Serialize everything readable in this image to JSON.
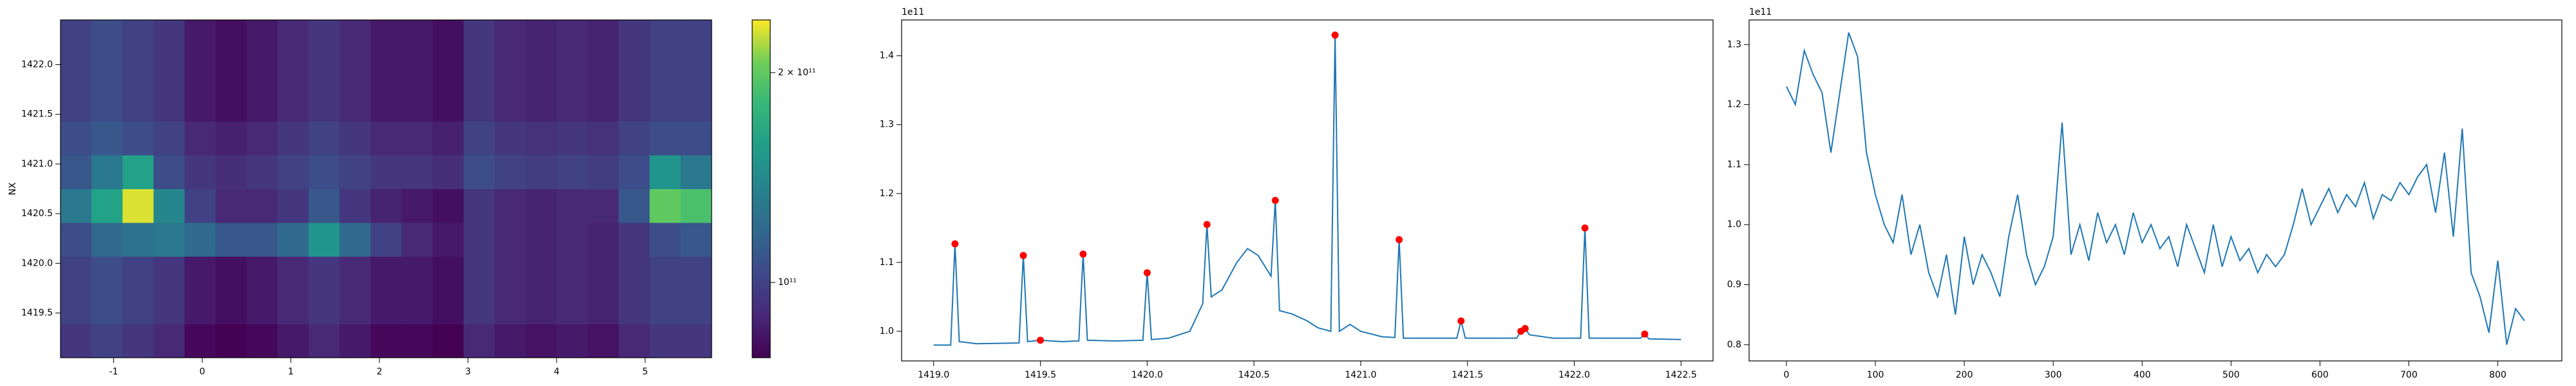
{
  "chart_data": [
    {
      "type": "heatmap",
      "ylabel": "NX",
      "colormap": "viridis",
      "xbins": [
        -1.6,
        -1.25,
        -0.9,
        -0.55,
        -0.2,
        0.15,
        0.5,
        0.85,
        1.2,
        1.55,
        1.9,
        2.25,
        2.6,
        2.95,
        3.3,
        3.65,
        4.0,
        4.35,
        4.7,
        5.05,
        5.4,
        5.75
      ],
      "ybins": [
        1419.05,
        1419.39,
        1419.73,
        1420.07,
        1420.41,
        1420.75,
        1421.09,
        1421.43,
        1421.77,
        1422.11,
        1422.45
      ],
      "values": [
        [
          95000000000.0,
          100000000000.0,
          95000000000.0,
          90000000000.0,
          80000000000.0,
          78000000000.0,
          80000000000.0,
          85000000000.0,
          90000000000.0,
          85000000000.0,
          80000000000.0,
          80000000000.0,
          78000000000.0,
          90000000000.0,
          85000000000.0,
          83000000000.0,
          85000000000.0,
          83000000000.0,
          90000000000.0,
          95000000000.0,
          95000000000.0
        ],
        [
          100000000000.0,
          105000000000.0,
          100000000000.0,
          95000000000.0,
          85000000000.0,
          82000000000.0,
          85000000000.0,
          90000000000.0,
          95000000000.0,
          90000000000.0,
          85000000000.0,
          85000000000.0,
          82000000000.0,
          95000000000.0,
          90000000000.0,
          88000000000.0,
          90000000000.0,
          88000000000.0,
          95000000000.0,
          100000000000.0,
          100000000000.0
        ],
        [
          100000000000.0,
          105000000000.0,
          100000000000.0,
          95000000000.0,
          85000000000.0,
          82000000000.0,
          85000000000.0,
          90000000000.0,
          95000000000.0,
          90000000000.0,
          85000000000.0,
          85000000000.0,
          82000000000.0,
          95000000000.0,
          90000000000.0,
          88000000000.0,
          90000000000.0,
          88000000000.0,
          95000000000.0,
          100000000000.0,
          100000000000.0
        ],
        [
          105000000000.0,
          120000000000.0,
          125000000000.0,
          130000000000.0,
          120000000000.0,
          110000000000.0,
          110000000000.0,
          120000000000.0,
          150000000000.0,
          120000000000.0,
          100000000000.0,
          90000000000.0,
          85000000000.0,
          95000000000.0,
          90000000000.0,
          88000000000.0,
          90000000000.0,
          88000000000.0,
          95000000000.0,
          105000000000.0,
          110000000000.0
        ],
        [
          130000000000.0,
          160000000000.0,
          230000000000.0,
          140000000000.0,
          100000000000.0,
          90000000000.0,
          90000000000.0,
          95000000000.0,
          110000000000.0,
          95000000000.0,
          88000000000.0,
          85000000000.0,
          82000000000.0,
          95000000000.0,
          90000000000.0,
          88000000000.0,
          90000000000.0,
          90000000000.0,
          110000000000.0,
          200000000000.0,
          190000000000.0
        ],
        [
          110000000000.0,
          130000000000.0,
          160000000000.0,
          105000000000.0,
          95000000000.0,
          92000000000.0,
          95000000000.0,
          100000000000.0,
          105000000000.0,
          100000000000.0,
          95000000000.0,
          95000000000.0,
          92000000000.0,
          105000000000.0,
          100000000000.0,
          98000000000.0,
          100000000000.0,
          98000000000.0,
          105000000000.0,
          150000000000.0,
          130000000000.0
        ],
        [
          105000000000.0,
          110000000000.0,
          105000000000.0,
          100000000000.0,
          90000000000.0,
          87000000000.0,
          90000000000.0,
          95000000000.0,
          100000000000.0,
          95000000000.0,
          90000000000.0,
          90000000000.0,
          87000000000.0,
          100000000000.0,
          95000000000.0,
          93000000000.0,
          95000000000.0,
          93000000000.0,
          100000000000.0,
          105000000000.0,
          105000000000.0
        ],
        [
          100000000000.0,
          105000000000.0,
          100000000000.0,
          95000000000.0,
          85000000000.0,
          82000000000.0,
          85000000000.0,
          90000000000.0,
          95000000000.0,
          90000000000.0,
          85000000000.0,
          85000000000.0,
          82000000000.0,
          95000000000.0,
          90000000000.0,
          88000000000.0,
          90000000000.0,
          88000000000.0,
          95000000000.0,
          100000000000.0,
          100000000000.0
        ],
        [
          100000000000.0,
          105000000000.0,
          100000000000.0,
          95000000000.0,
          85000000000.0,
          82000000000.0,
          85000000000.0,
          90000000000.0,
          95000000000.0,
          90000000000.0,
          85000000000.0,
          85000000000.0,
          82000000000.0,
          95000000000.0,
          90000000000.0,
          88000000000.0,
          90000000000.0,
          88000000000.0,
          95000000000.0,
          100000000000.0,
          100000000000.0
        ],
        [
          100000000000.0,
          105000000000.0,
          100000000000.0,
          95000000000.0,
          85000000000.0,
          82000000000.0,
          85000000000.0,
          90000000000.0,
          95000000000.0,
          90000000000.0,
          85000000000.0,
          85000000000.0,
          82000000000.0,
          95000000000.0,
          90000000000.0,
          88000000000.0,
          90000000000.0,
          88000000000.0,
          95000000000.0,
          100000000000.0,
          100000000000.0
        ]
      ],
      "xlim": [
        -1.6,
        5.75
      ],
      "xticks": [
        -1,
        0,
        1,
        2,
        3,
        4,
        5
      ],
      "ylim": [
        1419.05,
        1422.45
      ],
      "yticks": [
        1419.5,
        {
          "value": 1420,
          "label": "1420.0"
        },
        1420.5,
        {
          "value": 1421,
          "label": "1421.0"
        },
        1421.5,
        {
          "value": 1422,
          "label": "1422.0"
        }
      ],
      "colorbar": {
        "scale": "log",
        "lim": [
          78000000000.0,
          238000000000.0
        ],
        "ticks": [
          {
            "value": 100000000000.0,
            "label": "10¹¹"
          },
          {
            "value": 200000000000.0,
            "label": "2 × 10¹¹"
          }
        ]
      }
    },
    {
      "type": "line",
      "offset_text": "1e11",
      "series": [
        {
          "color": "#1f77b4",
          "style": "line",
          "x": [
            1419.0,
            1419.08,
            1419.1,
            1419.12,
            1419.2,
            1419.4,
            1419.42,
            1419.44,
            1419.5,
            1419.6,
            1419.68,
            1419.7,
            1419.72,
            1419.85,
            1419.98,
            1420.0,
            1420.02,
            1420.1,
            1420.2,
            1420.26,
            1420.28,
            1420.3,
            1420.35,
            1420.42,
            1420.47,
            1420.52,
            1420.56,
            1420.58,
            1420.6,
            1420.62,
            1420.68,
            1420.75,
            1420.8,
            1420.86,
            1420.88,
            1420.9,
            1420.95,
            1421.0,
            1421.1,
            1421.16,
            1421.18,
            1421.2,
            1421.3,
            1421.45,
            1421.47,
            1421.49,
            1421.6,
            1421.73,
            1421.75,
            1421.77,
            1421.79,
            1421.9,
            1422.03,
            1422.05,
            1422.07,
            1422.2,
            1422.31,
            1422.33,
            1422.35,
            1422.5
          ],
          "values": [
            0.98,
            0.98,
            1.127,
            0.985,
            0.982,
            0.983,
            1.11,
            0.985,
            0.987,
            0.985,
            0.986,
            1.112,
            0.987,
            0.986,
            0.987,
            1.085,
            0.988,
            0.99,
            1.0,
            1.04,
            1.155,
            1.05,
            1.06,
            1.1,
            1.12,
            1.11,
            1.09,
            1.08,
            1.19,
            1.03,
            1.025,
            1.015,
            1.005,
            1.0,
            1.43,
            1.0,
            1.01,
            1.0,
            0.992,
            0.991,
            1.133,
            0.99,
            0.99,
            0.99,
            1.015,
            0.99,
            0.99,
            0.99,
            1.0,
            1.004,
            0.995,
            0.99,
            0.99,
            1.15,
            0.99,
            0.99,
            0.99,
            0.996,
            0.989,
            0.988
          ]
        },
        {
          "color": "#ff0000",
          "style": "scatter",
          "x": [
            1419.1,
            1419.42,
            1419.5,
            1419.7,
            1420.0,
            1420.28,
            1420.6,
            1420.88,
            1421.18,
            1421.47,
            1421.75,
            1421.77,
            1422.05,
            1422.33
          ],
          "values": [
            1.127,
            1.11,
            0.987,
            1.112,
            1.085,
            1.155,
            1.19,
            1.43,
            1.133,
            1.015,
            1.0,
            1.004,
            1.15,
            0.996
          ]
        }
      ],
      "xlim": [
        1418.85,
        1422.65
      ],
      "xticks": [
        {
          "value": 1419,
          "label": "1419.0"
        },
        1419.5,
        {
          "value": 1420,
          "label": "1420.0"
        },
        1420.5,
        {
          "value": 1421,
          "label": "1421.0"
        },
        1421.5,
        {
          "value": 1422,
          "label": "1422.0"
        },
        1422.5
      ],
      "ylim": [
        0.957,
        1.452
      ],
      "yticks": [
        {
          "value": 1,
          "label": "1.0"
        },
        1.1,
        1.2,
        1.3,
        1.4
      ]
    },
    {
      "type": "line",
      "offset_text": "1e11",
      "series": [
        {
          "color": "#1f77b4",
          "style": "line",
          "x": [
            0,
            10,
            20,
            30,
            40,
            50,
            60,
            70,
            80,
            90,
            100,
            110,
            120,
            130,
            140,
            150,
            160,
            170,
            180,
            190,
            200,
            210,
            220,
            230,
            240,
            250,
            260,
            270,
            280,
            290,
            300,
            310,
            320,
            330,
            340,
            350,
            360,
            370,
            380,
            390,
            400,
            410,
            420,
            430,
            440,
            450,
            460,
            470,
            480,
            490,
            500,
            510,
            520,
            530,
            540,
            550,
            560,
            570,
            580,
            590,
            600,
            610,
            620,
            630,
            640,
            650,
            660,
            670,
            680,
            690,
            700,
            710,
            720,
            730,
            740,
            750,
            760,
            770,
            780,
            790,
            800,
            810,
            820,
            830
          ],
          "values": [
            1.23,
            1.2,
            1.29,
            1.25,
            1.22,
            1.12,
            1.22,
            1.32,
            1.28,
            1.12,
            1.05,
            1.0,
            0.97,
            1.05,
            0.95,
            1.0,
            0.92,
            0.88,
            0.95,
            0.85,
            0.98,
            0.9,
            0.95,
            0.92,
            0.88,
            0.98,
            1.05,
            0.95,
            0.9,
            0.93,
            0.98,
            1.17,
            0.95,
            1.0,
            0.94,
            1.02,
            0.97,
            1.0,
            0.95,
            1.02,
            0.97,
            1.0,
            0.96,
            0.98,
            0.93,
            1.0,
            0.96,
            0.92,
            1.0,
            0.93,
            0.98,
            0.94,
            0.96,
            0.92,
            0.95,
            0.93,
            0.95,
            1.0,
            1.06,
            1.0,
            1.03,
            1.06,
            1.02,
            1.05,
            1.03,
            1.07,
            1.01,
            1.05,
            1.04,
            1.07,
            1.05,
            1.08,
            1.1,
            1.02,
            1.12,
            0.98,
            1.16,
            0.92,
            0.88,
            0.82,
            0.94,
            0.8,
            0.86,
            0.84
          ]
        }
      ],
      "xlim": [
        -42,
        872
      ],
      "xticks": [
        0,
        100,
        200,
        300,
        400,
        500,
        600,
        700,
        800
      ],
      "ylim": [
        0.773,
        1.341
      ],
      "yticks": [
        0.8,
        0.9,
        {
          "value": 1,
          "label": "1.0"
        },
        1.1,
        1.2,
        1.3
      ]
    }
  ]
}
